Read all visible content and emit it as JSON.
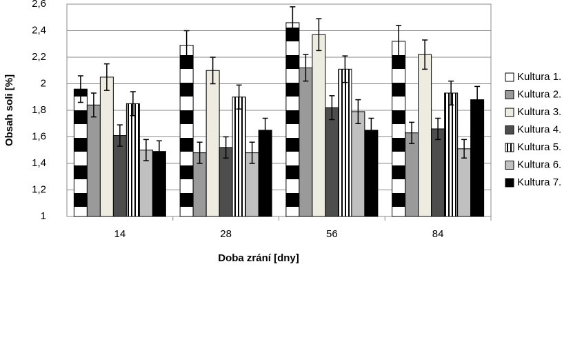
{
  "chart_data": {
    "type": "bar",
    "x_label": "Doba zrání [dny]",
    "y_label": "Obsah soli [%]",
    "categories": [
      "14",
      "28",
      "56",
      "84"
    ],
    "ylim": [
      1,
      2.6
    ],
    "yticks": [
      1,
      {
        "value": 1.2,
        "label": "1,2"
      },
      {
        "value": 1.4,
        "label": "1,4"
      },
      {
        "value": 1.6,
        "label": "1,6"
      },
      {
        "value": 1.8,
        "label": "1,8"
      },
      2,
      {
        "value": 2.2,
        "label": "2,2"
      },
      {
        "value": 2.4,
        "label": "2,4"
      },
      {
        "value": 2.6,
        "label": "2,6"
      }
    ],
    "grid": true,
    "legend": "right",
    "series": [
      {
        "name": "Kultura 1.",
        "color": "#000000",
        "pattern": "horizontal-stripes",
        "values": [
          1.96,
          2.29,
          2.46,
          2.32
        ],
        "errors": [
          0.1,
          0.11,
          0.12,
          0.12
        ]
      },
      {
        "name": "Kultura 2.",
        "color": "#9a9a9a",
        "values": [
          1.84,
          1.48,
          2.12,
          1.63
        ],
        "errors": [
          0.09,
          0.08,
          0.1,
          0.08
        ]
      },
      {
        "name": "Kultura 3.",
        "color": "#eeebe0",
        "values": [
          2.05,
          2.1,
          2.37,
          2.22
        ],
        "errors": [
          0.1,
          0.1,
          0.12,
          0.11
        ]
      },
      {
        "name": "Kultura 4.",
        "color": "#4d4d4d",
        "values": [
          1.61,
          1.52,
          1.82,
          1.66
        ],
        "errors": [
          0.08,
          0.08,
          0.09,
          0.08
        ]
      },
      {
        "name": "Kultura 5.",
        "color": "#000000",
        "pattern": "vertical-stripes",
        "values": [
          1.85,
          1.9,
          2.11,
          1.93
        ],
        "errors": [
          0.09,
          0.09,
          0.1,
          0.09
        ]
      },
      {
        "name": "Kultura 6.",
        "color": "#c0c0c0",
        "values": [
          1.5,
          1.48,
          1.79,
          1.51
        ],
        "errors": [
          0.08,
          0.08,
          0.09,
          0.07
        ]
      },
      {
        "name": "Kultura 7.",
        "color": "#000000",
        "values": [
          1.49,
          1.65,
          1.65,
          1.88
        ],
        "errors": [
          0.08,
          0.09,
          0.09,
          0.1
        ]
      }
    ]
  }
}
